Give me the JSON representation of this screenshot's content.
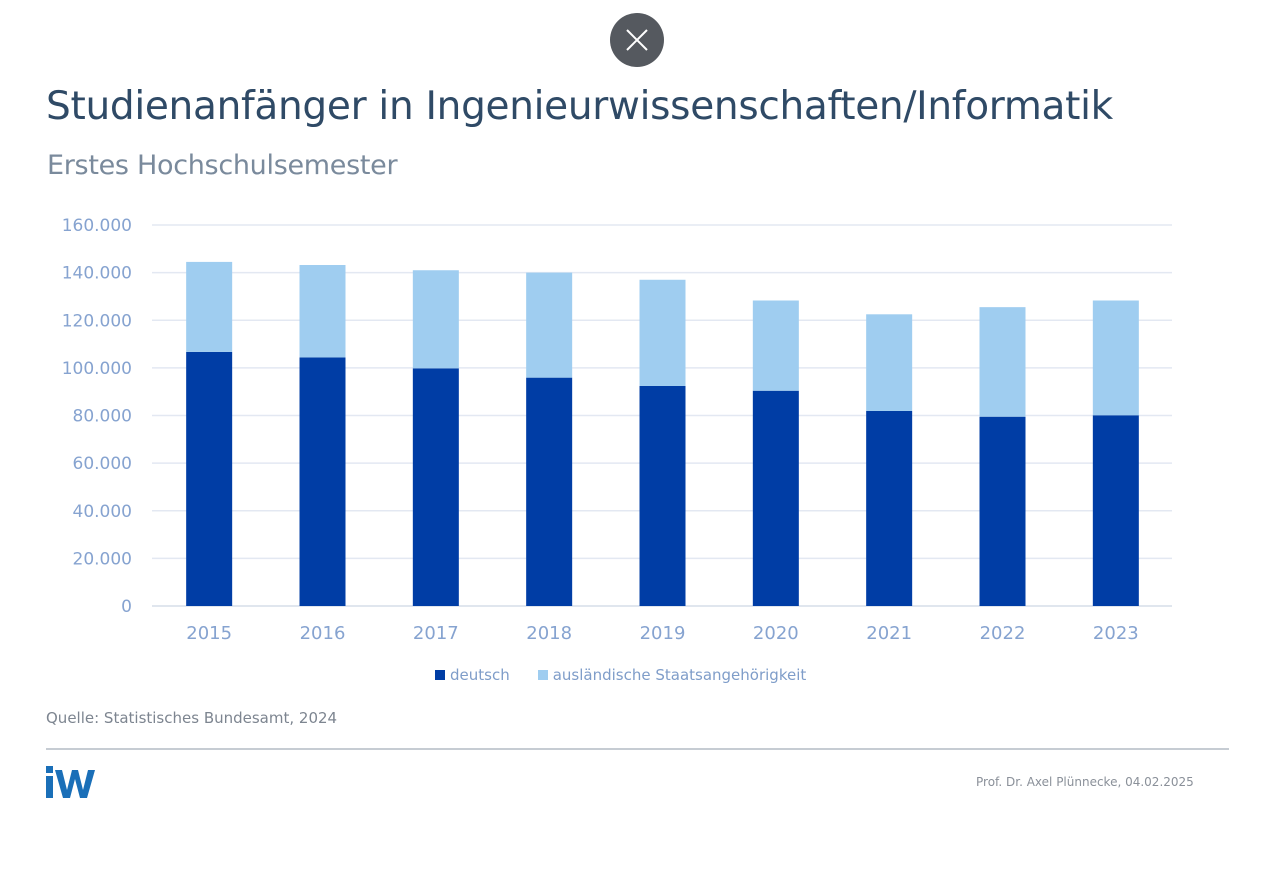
{
  "close_button": {
    "icon": "close-icon",
    "label": "Close"
  },
  "header": {
    "title": "Studienanfänger in Ingenieurwissenschaften/Informatik",
    "subtitle": "Erstes Hochschulsemester"
  },
  "chart_data": {
    "type": "bar",
    "stacked": true,
    "title": "Studienanfänger in Ingenieurwissenschaften/Informatik",
    "subtitle": "Erstes Hochschulsemester",
    "xlabel": "",
    "ylabel": "",
    "categories": [
      "2015",
      "2016",
      "2017",
      "2018",
      "2019",
      "2020",
      "2021",
      "2022",
      "2023"
    ],
    "series": [
      {
        "name": "deutsch",
        "color": "#003da5",
        "values": [
          106700,
          104400,
          99800,
          95900,
          92400,
          90400,
          81900,
          79500,
          80100
        ]
      },
      {
        "name": "ausländische Staatsangehörigkeit",
        "color": "#9fcdf0",
        "values": [
          37800,
          38800,
          41200,
          44100,
          44600,
          37900,
          40600,
          46000,
          48200
        ]
      }
    ],
    "ylim": [
      0,
      160000
    ],
    "yticks": [
      0,
      20000,
      40000,
      60000,
      80000,
      100000,
      120000,
      140000,
      160000
    ],
    "ytick_labels": [
      "0",
      "20.000",
      "40.000",
      "60.000",
      "80.000",
      "100.000",
      "120.000",
      "140.000",
      "160.000"
    ],
    "grid": true,
    "legend": {
      "placement": "bottom-center",
      "entries": [
        "deutsch",
        "ausländische Staatsangehörigkeit"
      ]
    }
  },
  "legend": {
    "items": [
      {
        "label": "deutsch",
        "color": "#003da5"
      },
      {
        "label": "ausländische Staatsangehörigkeit",
        "color": "#9fcdf0"
      }
    ]
  },
  "footer": {
    "source": "Quelle: Statistisches Bundesamt, 2024",
    "logo_text": "iW",
    "logo_color": "#1a6fb8",
    "author": "Prof. Dr. Axel Plünnecke, 04.02.2025"
  }
}
